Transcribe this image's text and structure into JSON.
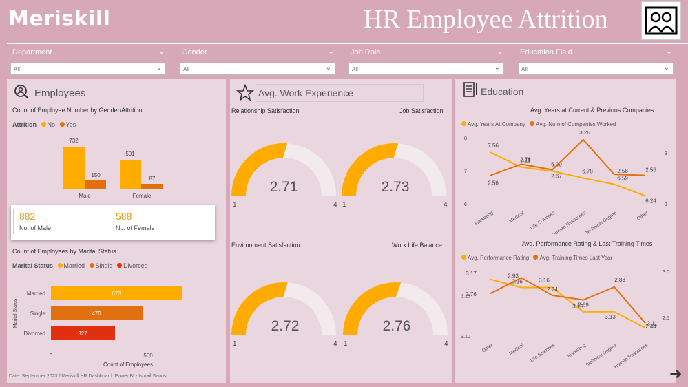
{
  "brand": "Meriskill",
  "title": "HR Employee Attrition",
  "slicers": [
    {
      "label": "Department",
      "value": "All"
    },
    {
      "label": "Gender",
      "value": "All"
    },
    {
      "label": "Job Role",
      "value": "All"
    },
    {
      "label": "Education Field",
      "value": "All"
    }
  ],
  "employees": {
    "header": "Employees",
    "chart_title": "Count of Employee Number by Gender/Attrition",
    "legend_title": "Attrition",
    "legend_no": "No",
    "legend_yes": "Yes",
    "male_label": "Male",
    "female_label": "Female",
    "male_no": "732",
    "male_yes": "150",
    "female_no": "501",
    "female_yes": "87",
    "kpi_male_value": "882",
    "kpi_male_label": "No. of Male",
    "kpi_female_value": "588",
    "kpi_female_label": "No. of Female",
    "marital_title": "Count of Employees by Marital Status",
    "marital_legend_title": "Marital Status",
    "marital_ylabel": "Marital Status",
    "marital_xlabel": "Count of Employees",
    "x_tick_0": "0",
    "x_tick_500": "500"
  },
  "experience": {
    "header": "Avg. Work Experience",
    "g1_title": "Relationship Satisfaction",
    "g1_value": "2.71",
    "g2_title": "Job Satisfaction",
    "g2_value": "2.73",
    "g3_title": "Environment Satisfaction",
    "g3_value": "2.72",
    "g4_title": "Work Life Balance",
    "g4_value": "2.76",
    "min": "1",
    "max": "4"
  },
  "education": {
    "header": "Education",
    "c1_title": "Avg. Years at Current & Previous Companies",
    "c1_legend_a": "Avg. Years At Company",
    "c1_legend_b": "Avg. Num of Companies Worked",
    "c2_title": "Avg. Performance Rating & Last Training Times",
    "c2_legend_a": "Avg. Performance Rating",
    "c2_legend_b": "Avg. Training Times Last Year"
  },
  "footer": "Date: September 2023 / Meriskill HR Dashboard: Power BI - Ismail Sanusi",
  "colors": {
    "orange": "#ffab00",
    "dark_orange": "#e07010",
    "red": "#e03010",
    "bg": "#d7a8b7",
    "panel": "#ead6de"
  },
  "chart_data": [
    {
      "type": "bar",
      "title": "Count of Employee Number by Gender/Attrition",
      "categories": [
        "Male",
        "Female"
      ],
      "series": [
        {
          "name": "No",
          "values": [
            732,
            501
          ]
        },
        {
          "name": "Yes",
          "values": [
            150,
            87
          ]
        }
      ]
    },
    {
      "type": "bar",
      "title": "Count of Employees by Marital Status",
      "orientation": "horizontal",
      "categories": [
        "Married",
        "Single",
        "Divorced"
      ],
      "values": [
        673,
        470,
        327
      ],
      "xlabel": "Count of Employees",
      "ylabel": "Marital Status",
      "xlim": [
        0,
        700
      ]
    },
    {
      "type": "line",
      "title": "Avg. Years at Current & Previous Companies",
      "categories": [
        "Marketing",
        "Medical",
        "Life Sciences",
        "Human Resources",
        "Technical Degree",
        "Other"
      ],
      "series": [
        {
          "name": "Avg. Years At Company",
          "values": [
            7.56,
            7.11,
            6.99,
            6.78,
            6.59,
            6.24
          ],
          "axis": "left"
        },
        {
          "name": "Avg. Num of Companies Worked",
          "values": [
            2.56,
            2.78,
            2.67,
            3.26,
            2.58,
            2.56
          ],
          "axis": "right"
        }
      ],
      "y_left_ticks": [
        6,
        7,
        8
      ],
      "y_right_ticks": [
        2,
        3
      ]
    },
    {
      "type": "line",
      "title": "Avg. Performance Rating & Last Training Times",
      "categories": [
        "Other",
        "Medical",
        "Life Sciences",
        "Marketing",
        "Technical Degree",
        "Human Resources"
      ],
      "series": [
        {
          "name": "Avg. Performance Rating",
          "values": [
            3.17,
            3.16,
            3.16,
            3.13,
            3.13,
            3.11
          ],
          "axis": "left"
        },
        {
          "name": "Avg. Training Times Last Year",
          "values": [
            2.76,
            2.93,
            2.74,
            2.69,
            2.83,
            2.44
          ],
          "axis": "right"
        }
      ],
      "y_left_ticks": [
        3.1,
        3.15
      ],
      "y_right_ticks": [
        2.5,
        3.0
      ]
    }
  ]
}
